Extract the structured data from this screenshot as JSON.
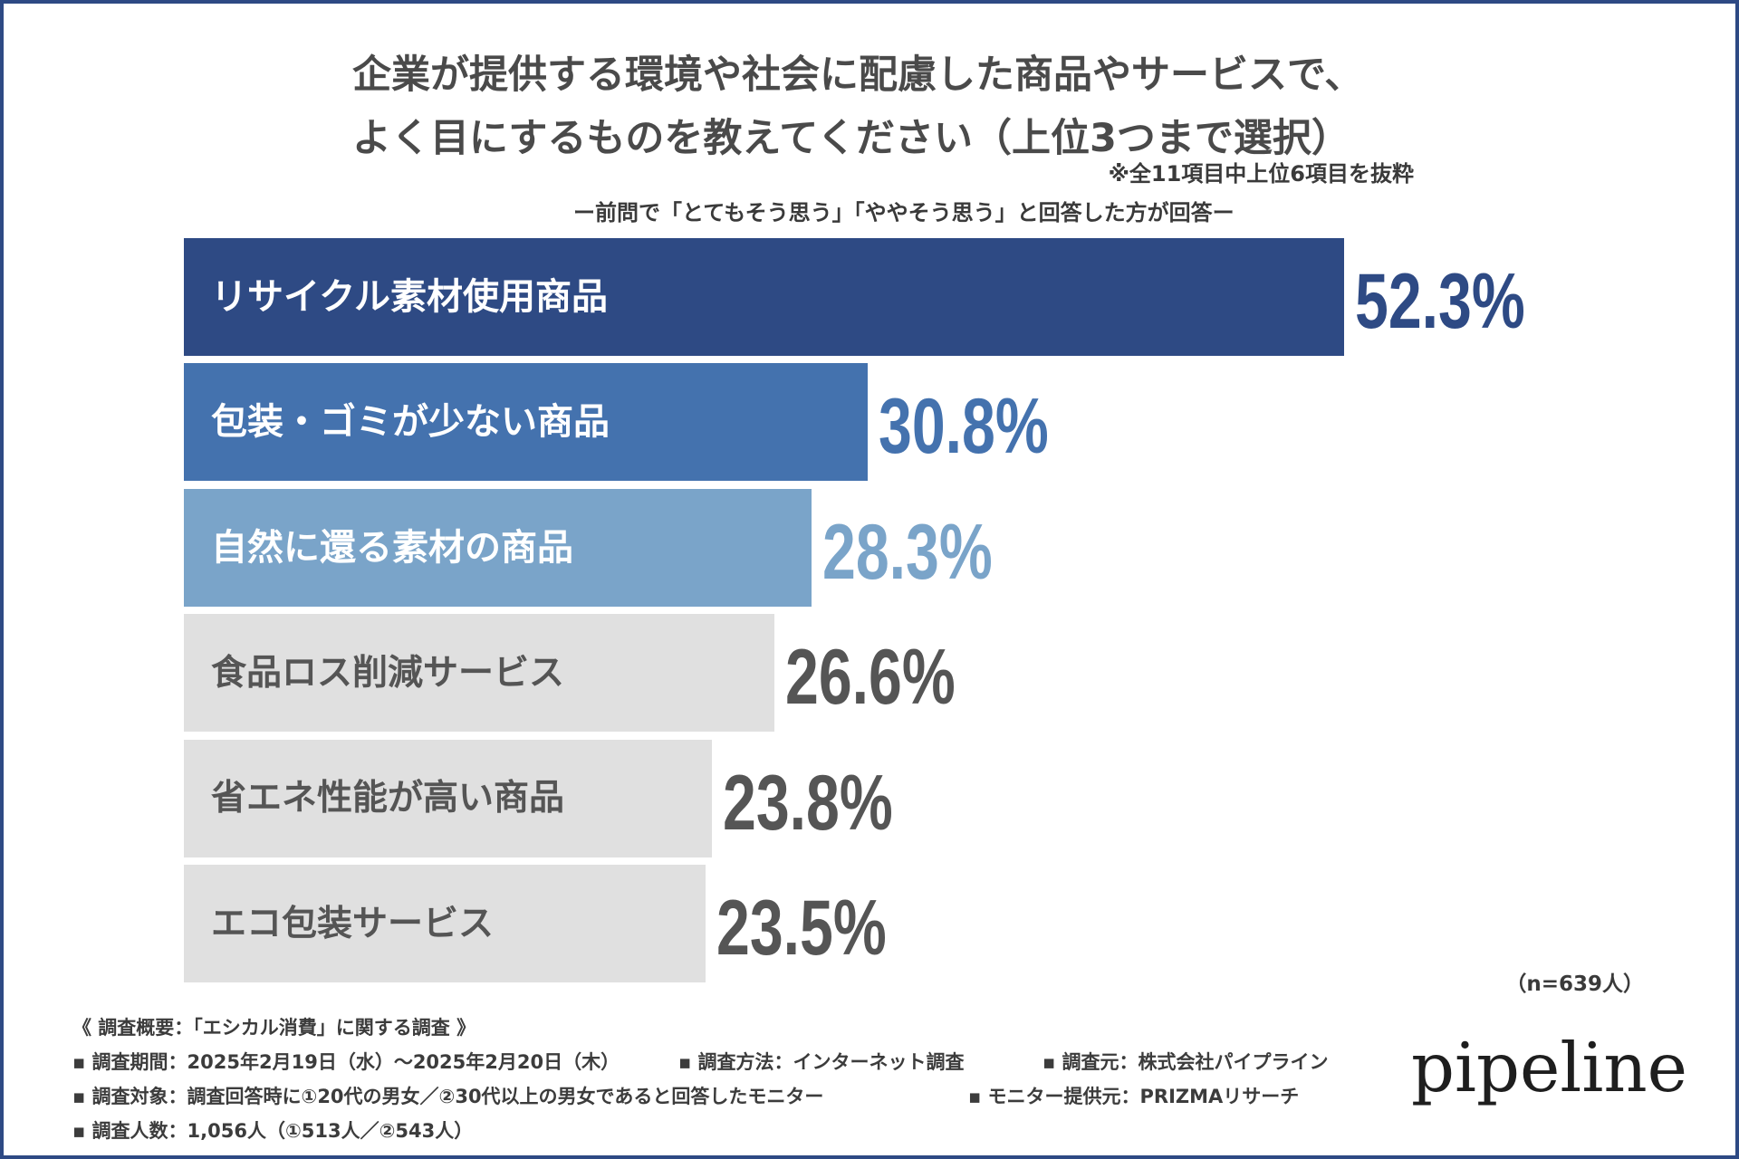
{
  "chart_data": {
    "type": "bar",
    "orientation": "horizontal",
    "title": [
      "企業が提供する環境や社会に配慮した商品やサービスで、",
      "よく目にするものを教えてください（上位3つまで選択）"
    ],
    "note": "※全11項目中上位6項目を抜粋",
    "subtitle": "ー前問で「とてもそう思う」「ややそう思う」と回答した方が回答ー",
    "categories": [
      "リサイクル素材使用商品",
      "包装・ゴミが少ない商品",
      "自然に還る素材の商品",
      "食品ロス削減サービス",
      "省エネ性能が高い商品",
      "エコ包装サービス"
    ],
    "values": [
      52.3,
      30.8,
      28.3,
      26.6,
      23.8,
      23.5
    ],
    "value_labels": [
      "52.3%",
      "30.8%",
      "28.3%",
      "26.6%",
      "23.8%",
      "23.5%"
    ],
    "bar_colors": [
      "#2e4a84",
      "#4472ae",
      "#7aa4c9",
      "#e0e0e0",
      "#e0e0e0",
      "#e0e0e0"
    ],
    "label_colors": [
      "#ffffff",
      "#ffffff",
      "#ffffff",
      "#555555",
      "#555555",
      "#555555"
    ],
    "value_colors": [
      "#2e4a84",
      "#4472ae",
      "#7aa4c9",
      "#555555",
      "#555555",
      "#555555"
    ],
    "sample_size": "（n=639人）",
    "grid": false,
    "legend": "none"
  },
  "footer": {
    "heading": "《 調査概要：「エシカル消費」に関する調査 》",
    "period": "▪ 調査期間：2025年2月19日（水）〜2025年2月20日（木）",
    "method": "▪ 調査方法：インターネット調査",
    "source": "▪ 調査元：株式会社パイプライン",
    "target": "▪ 調査対象：調査回答時に①20代の男女／②30代以上の男女であると回答したモニター",
    "panel": "▪ モニター提供元：PRIZMAリサーチ",
    "respondents": "▪ 調査人数：1,056人（①513人／②543人）"
  },
  "logo": "pipeline",
  "colors": {
    "frame": "#2e4a84",
    "title_text": "#4a4a4a",
    "footer_text": "#3c3c3c"
  }
}
